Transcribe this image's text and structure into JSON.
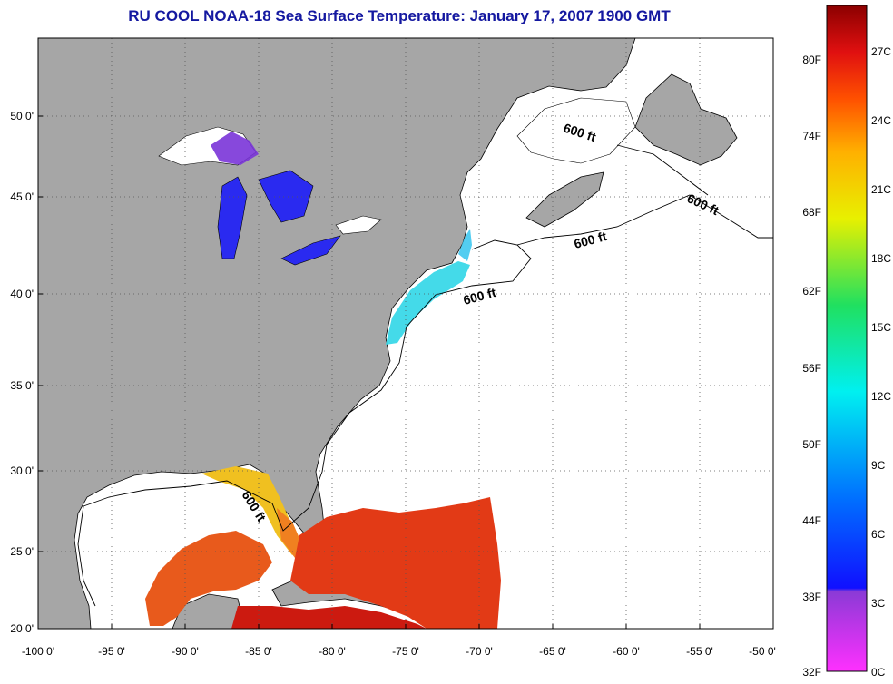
{
  "title": "RU COOL  NOAA-18  Sea Surface Temperature:  January 17, 2007 1900 GMT",
  "map": {
    "lon_ticks": [
      "-100 0'",
      "-95 0'",
      "-90 0'",
      "-85 0'",
      "-80 0'",
      "-75 0'",
      "-70 0'",
      "-65 0'",
      "-60 0'",
      "-55 0'",
      "-50 0'"
    ],
    "lat_ticks": [
      "50 0'",
      "45 0'",
      "40 0'",
      "35 0'",
      "30 0'",
      "25 0'",
      "20 0'"
    ],
    "isobath_labels": [
      "600 ft",
      "600 ft",
      "600 ft",
      "600 ft",
      "600 ft"
    ],
    "land_color": "#a6a6a6",
    "ocean_color": "#ffffff",
    "grid": true
  },
  "colorbar": {
    "fahrenheit_labels": [
      "80F",
      "74F",
      "68F",
      "62F",
      "56F",
      "50F",
      "44F",
      "38F",
      "32F"
    ],
    "celsius_labels": [
      "27C",
      "24C",
      "21C",
      "18C",
      "15C",
      "12C",
      "9C",
      "6C",
      "3C",
      "0C"
    ]
  }
}
